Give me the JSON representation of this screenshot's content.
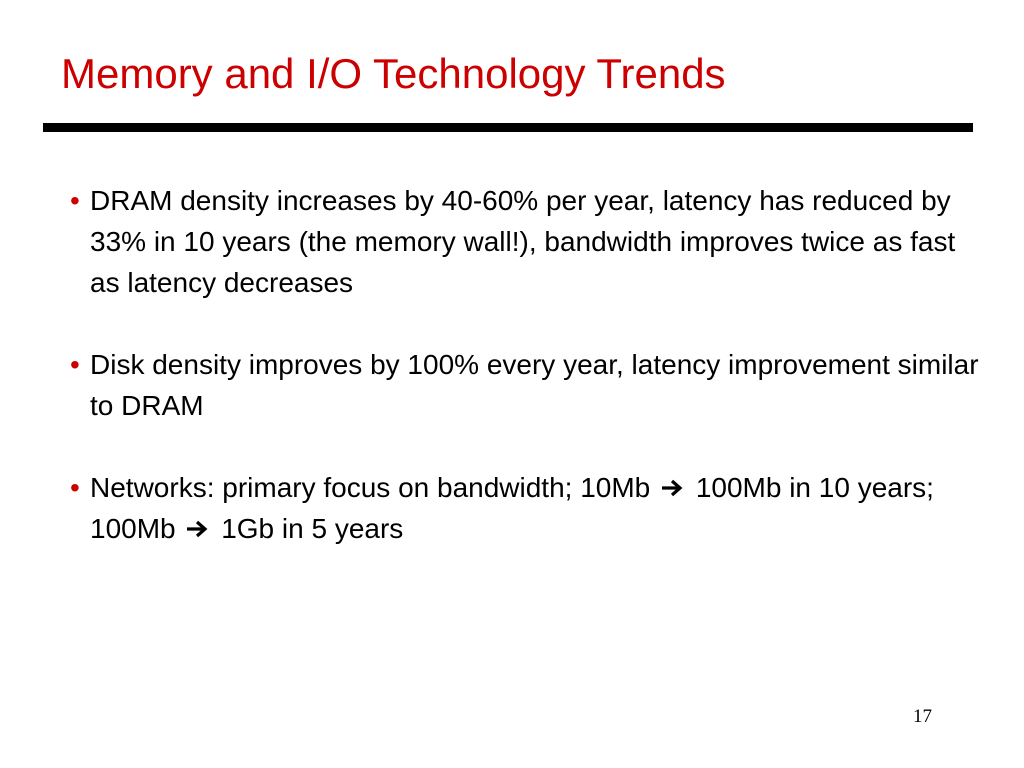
{
  "slide": {
    "title": "Memory and I/O Technology Trends",
    "page_number": "17",
    "colors": {
      "title": "#cc0000",
      "bullet": "#cc0000",
      "rule": "#000000",
      "text": "#000000"
    },
    "bullet_glyph": "•",
    "bullets": [
      {
        "text": "DRAM density increases by 40-60% per year, latency has reduced by 33% in 10 years (the memory wall!), bandwidth improves twice as fast as latency decreases"
      },
      {
        "text": "Disk density improves by 100% every year, latency improvement similar to DRAM"
      },
      {
        "text_1": "Networks: primary focus on bandwidth; 10Mb",
        "text_2": "100Mb in 10 years; 100Mb",
        "text_3": "1Gb in 5 years",
        "arrow_icon": "right-arrow-icon"
      }
    ]
  }
}
